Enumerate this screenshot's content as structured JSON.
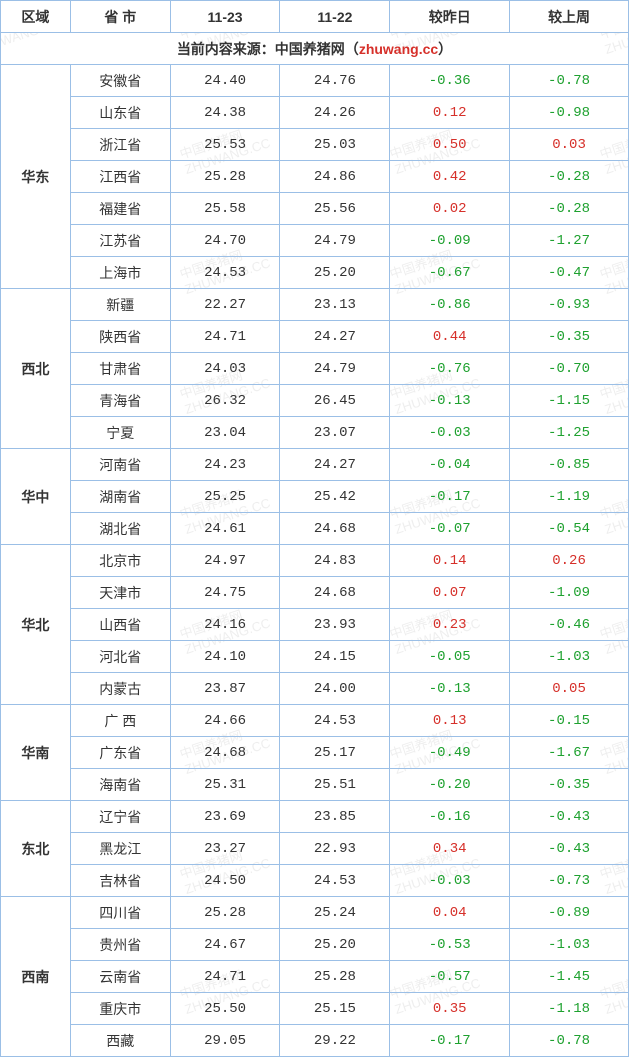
{
  "watermark": {
    "line1": "中国养猪网",
    "line2": "ZHUWANG.CC"
  },
  "headers": {
    "region": "区域",
    "province": "省 市",
    "date1": "11-23",
    "date2": "11-22",
    "diff_day": "较昨日",
    "diff_week": "较上周"
  },
  "source_prefix": "当前内容来源：中国养猪网（",
  "source_url": "zhuwang.cc",
  "source_suffix": "）",
  "colors": {
    "border": "#9bbfe6",
    "positive": "#d6302a",
    "negative": "#1ea12f",
    "text": "#333333",
    "watermark": "#e8e8e8"
  },
  "regions": [
    {
      "name": "华东",
      "rows": [
        {
          "prov": "安徽省",
          "d1": "24.40",
          "d2": "24.76",
          "dd": "-0.36",
          "dw": "-0.78"
        },
        {
          "prov": "山东省",
          "d1": "24.38",
          "d2": "24.26",
          "dd": "0.12",
          "dw": "-0.98"
        },
        {
          "prov": "浙江省",
          "d1": "25.53",
          "d2": "25.03",
          "dd": "0.50",
          "dw": "0.03"
        },
        {
          "prov": "江西省",
          "d1": "25.28",
          "d2": "24.86",
          "dd": "0.42",
          "dw": "-0.28"
        },
        {
          "prov": "福建省",
          "d1": "25.58",
          "d2": "25.56",
          "dd": "0.02",
          "dw": "-0.28"
        },
        {
          "prov": "江苏省",
          "d1": "24.70",
          "d2": "24.79",
          "dd": "-0.09",
          "dw": "-1.27"
        },
        {
          "prov": "上海市",
          "d1": "24.53",
          "d2": "25.20",
          "dd": "-0.67",
          "dw": "-0.47"
        }
      ]
    },
    {
      "name": "西北",
      "rows": [
        {
          "prov": "新疆",
          "d1": "22.27",
          "d2": "23.13",
          "dd": "-0.86",
          "dw": "-0.93"
        },
        {
          "prov": "陕西省",
          "d1": "24.71",
          "d2": "24.27",
          "dd": "0.44",
          "dw": "-0.35"
        },
        {
          "prov": "甘肃省",
          "d1": "24.03",
          "d2": "24.79",
          "dd": "-0.76",
          "dw": "-0.70"
        },
        {
          "prov": "青海省",
          "d1": "26.32",
          "d2": "26.45",
          "dd": "-0.13",
          "dw": "-1.15"
        },
        {
          "prov": "宁夏",
          "d1": "23.04",
          "d2": "23.07",
          "dd": "-0.03",
          "dw": "-1.25"
        }
      ]
    },
    {
      "name": "华中",
      "rows": [
        {
          "prov": "河南省",
          "d1": "24.23",
          "d2": "24.27",
          "dd": "-0.04",
          "dw": "-0.85"
        },
        {
          "prov": "湖南省",
          "d1": "25.25",
          "d2": "25.42",
          "dd": "-0.17",
          "dw": "-1.19"
        },
        {
          "prov": "湖北省",
          "d1": "24.61",
          "d2": "24.68",
          "dd": "-0.07",
          "dw": "-0.54"
        }
      ]
    },
    {
      "name": "华北",
      "rows": [
        {
          "prov": "北京市",
          "d1": "24.97",
          "d2": "24.83",
          "dd": "0.14",
          "dw": "0.26"
        },
        {
          "prov": "天津市",
          "d1": "24.75",
          "d2": "24.68",
          "dd": "0.07",
          "dw": "-1.09"
        },
        {
          "prov": "山西省",
          "d1": "24.16",
          "d2": "23.93",
          "dd": "0.23",
          "dw": "-0.46"
        },
        {
          "prov": "河北省",
          "d1": "24.10",
          "d2": "24.15",
          "dd": "-0.05",
          "dw": "-1.03"
        },
        {
          "prov": "内蒙古",
          "d1": "23.87",
          "d2": "24.00",
          "dd": "-0.13",
          "dw": "0.05"
        }
      ]
    },
    {
      "name": "华南",
      "rows": [
        {
          "prov": "广 西",
          "d1": "24.66",
          "d2": "24.53",
          "dd": "0.13",
          "dw": "-0.15"
        },
        {
          "prov": "广东省",
          "d1": "24.68",
          "d2": "25.17",
          "dd": "-0.49",
          "dw": "-1.67"
        },
        {
          "prov": "海南省",
          "d1": "25.31",
          "d2": "25.51",
          "dd": "-0.20",
          "dw": "-0.35"
        }
      ]
    },
    {
      "name": "东北",
      "rows": [
        {
          "prov": "辽宁省",
          "d1": "23.69",
          "d2": "23.85",
          "dd": "-0.16",
          "dw": "-0.43"
        },
        {
          "prov": "黑龙江",
          "d1": "23.27",
          "d2": "22.93",
          "dd": "0.34",
          "dw": "-0.43"
        },
        {
          "prov": "吉林省",
          "d1": "24.50",
          "d2": "24.53",
          "dd": "-0.03",
          "dw": "-0.73"
        }
      ]
    },
    {
      "name": "西南",
      "rows": [
        {
          "prov": "四川省",
          "d1": "25.28",
          "d2": "25.24",
          "dd": "0.04",
          "dw": "-0.89"
        },
        {
          "prov": "贵州省",
          "d1": "24.67",
          "d2": "25.20",
          "dd": "-0.53",
          "dw": "-1.03"
        },
        {
          "prov": "云南省",
          "d1": "24.71",
          "d2": "25.28",
          "dd": "-0.57",
          "dw": "-1.45"
        },
        {
          "prov": "重庆市",
          "d1": "25.50",
          "d2": "25.15",
          "dd": "0.35",
          "dw": "-1.18"
        },
        {
          "prov": "西藏",
          "d1": "29.05",
          "d2": "29.22",
          "dd": "-0.17",
          "dw": "-0.78"
        }
      ]
    }
  ]
}
